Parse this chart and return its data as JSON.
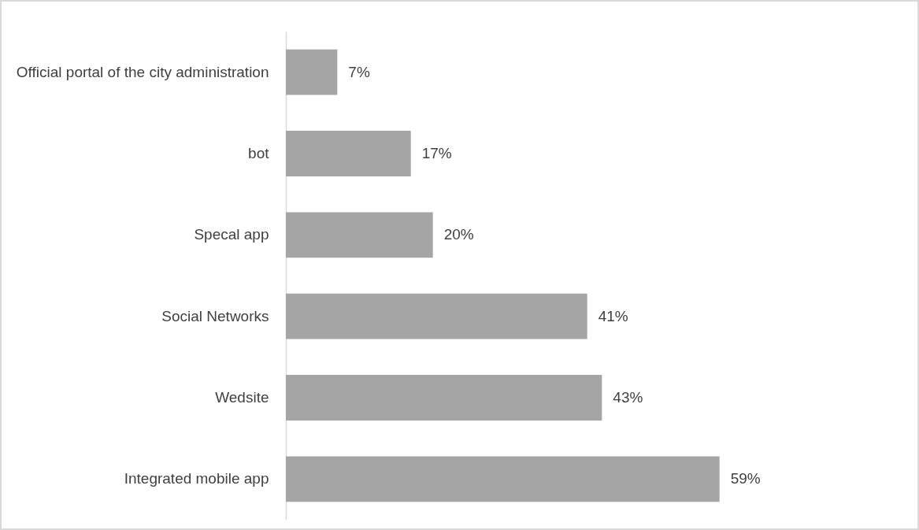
{
  "chart_data": {
    "type": "bar",
    "orientation": "horizontal",
    "categories": [
      "Official portal of the city administration",
      "bot",
      "Specal app",
      "Social Networks",
      "Wedsite",
      "Integrated mobile app"
    ],
    "values": [
      7,
      17,
      20,
      41,
      43,
      59
    ],
    "value_labels": [
      "7%",
      "17%",
      "20%",
      "41%",
      "43%",
      "59%"
    ],
    "color": "#a5a5a5"
  }
}
